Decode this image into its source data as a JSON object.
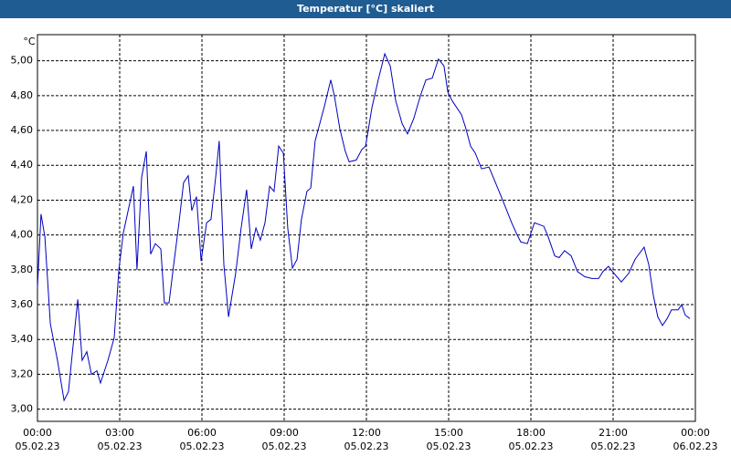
{
  "chart_data": {
    "type": "line",
    "title": "Temperatur [°C] skaliert",
    "y_unit": "°C",
    "x": [
      0,
      0.13,
      0.27,
      0.47,
      0.73,
      0.97,
      1.13,
      1.47,
      1.63,
      1.8,
      1.97,
      2.17,
      2.3,
      2.57,
      2.8,
      2.97,
      3.13,
      3.5,
      3.63,
      3.8,
      3.97,
      4.13,
      4.3,
      4.5,
      4.63,
      4.8,
      4.97,
      5.17,
      5.33,
      5.5,
      5.63,
      5.8,
      5.97,
      6.17,
      6.33,
      6.5,
      6.63,
      6.8,
      6.97,
      7.23,
      7.43,
      7.63,
      7.8,
      7.97,
      8.13,
      8.3,
      8.47,
      8.63,
      8.8,
      8.97,
      9.13,
      9.3,
      9.47,
      9.63,
      9.83,
      9.97,
      10.13,
      10.47,
      10.7,
      10.83,
      11.03,
      11.23,
      11.37,
      11.63,
      11.83,
      11.97,
      12.2,
      12.43,
      12.67,
      12.87,
      13.07,
      13.3,
      13.5,
      13.73,
      13.97,
      14.17,
      14.4,
      14.63,
      14.83,
      14.97,
      15.13,
      15.47,
      15.63,
      15.8,
      15.97,
      16.2,
      16.47,
      16.63,
      16.97,
      17.3,
      17.47,
      17.63,
      17.87,
      18.13,
      18.47,
      18.63,
      18.87,
      19.03,
      19.23,
      19.47,
      19.7,
      19.97,
      20.23,
      20.47,
      20.63,
      20.83,
      21.03,
      21.3,
      21.57,
      21.8,
      22.13,
      22.3,
      22.47,
      22.63,
      22.8,
      22.97,
      23.13,
      23.37,
      23.5,
      23.63,
      23.8
    ],
    "series": [
      {
        "color": "#0000c0",
        "values": [
          3.7,
          4.12,
          3.99,
          3.49,
          3.28,
          3.05,
          3.1,
          3.63,
          3.28,
          3.33,
          3.2,
          3.22,
          3.15,
          3.28,
          3.41,
          3.8,
          4.01,
          4.28,
          3.8,
          4.33,
          4.48,
          3.89,
          3.95,
          3.92,
          3.61,
          3.61,
          3.83,
          4.08,
          4.3,
          4.34,
          4.14,
          4.22,
          3.85,
          4.07,
          4.09,
          4.33,
          4.54,
          3.83,
          3.53,
          3.78,
          4.04,
          4.26,
          3.92,
          4.04,
          3.97,
          4.07,
          4.28,
          4.25,
          4.51,
          4.47,
          4.04,
          3.81,
          3.86,
          4.09,
          4.25,
          4.27,
          4.54,
          4.74,
          4.89,
          4.8,
          4.61,
          4.48,
          4.42,
          4.43,
          4.49,
          4.51,
          4.73,
          4.89,
          5.04,
          4.97,
          4.77,
          4.64,
          4.58,
          4.67,
          4.8,
          4.89,
          4.9,
          5.01,
          4.97,
          4.82,
          4.77,
          4.69,
          4.61,
          4.51,
          4.47,
          4.38,
          4.39,
          4.33,
          4.2,
          4.07,
          4.01,
          3.96,
          3.95,
          4.07,
          4.05,
          3.99,
          3.88,
          3.87,
          3.91,
          3.88,
          3.79,
          3.76,
          3.75,
          3.75,
          3.79,
          3.82,
          3.78,
          3.73,
          3.78,
          3.86,
          3.93,
          3.83,
          3.65,
          3.53,
          3.48,
          3.52,
          3.57,
          3.57,
          3.6,
          3.54,
          3.52
        ]
      }
    ],
    "xlim": [
      0,
      24
    ],
    "xticks": [
      {
        "value": 0,
        "label": "00:00",
        "sublabel": "05.02.23"
      },
      {
        "value": 3,
        "label": "03:00",
        "sublabel": "05.02.23"
      },
      {
        "value": 6,
        "label": "06:00",
        "sublabel": "05.02.23"
      },
      {
        "value": 9,
        "label": "09:00",
        "sublabel": "05.02.23"
      },
      {
        "value": 12,
        "label": "12:00",
        "sublabel": "05.02.23"
      },
      {
        "value": 15,
        "label": "15:00",
        "sublabel": "05.02.23"
      },
      {
        "value": 18,
        "label": "18:00",
        "sublabel": "05.02.23"
      },
      {
        "value": 21,
        "label": "21:00",
        "sublabel": "05.02.23"
      },
      {
        "value": 24,
        "label": "00:00",
        "sublabel": "06.02.23"
      }
    ],
    "ylim": [
      2.93,
      5.15
    ],
    "yticks": [
      {
        "value": 3.0,
        "label": "3,00"
      },
      {
        "value": 3.2,
        "label": "3,20"
      },
      {
        "value": 3.4,
        "label": "3,40"
      },
      {
        "value": 3.6,
        "label": "3,60"
      },
      {
        "value": 3.8,
        "label": "3,80"
      },
      {
        "value": 4.0,
        "label": "4,00"
      },
      {
        "value": 4.2,
        "label": "4,20"
      },
      {
        "value": 4.4,
        "label": "4,40"
      },
      {
        "value": 4.6,
        "label": "4,60"
      },
      {
        "value": 4.8,
        "label": "4,80"
      },
      {
        "value": 5.0,
        "label": "5,00"
      }
    ],
    "grid": true
  }
}
